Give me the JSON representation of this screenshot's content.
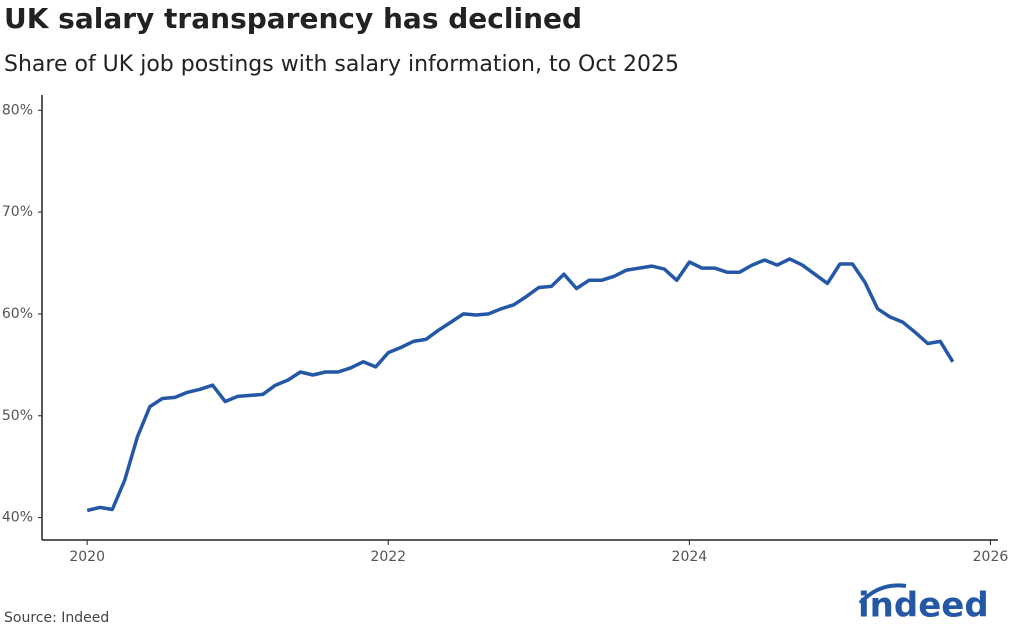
{
  "chart_data": {
    "type": "line",
    "title": "UK salary transparency has declined",
    "subtitle": "Share of UK job postings with salary information, to Oct 2025",
    "source": "Source: Indeed",
    "logo": "indeed",
    "x": [
      "2020-01",
      "2020-02",
      "2020-03",
      "2020-04",
      "2020-05",
      "2020-06",
      "2020-07",
      "2020-08",
      "2020-09",
      "2020-10",
      "2020-11",
      "2020-12",
      "2021-01",
      "2021-02",
      "2021-03",
      "2021-04",
      "2021-05",
      "2021-06",
      "2021-07",
      "2021-08",
      "2021-09",
      "2021-10",
      "2021-11",
      "2021-12",
      "2022-01",
      "2022-02",
      "2022-03",
      "2022-04",
      "2022-05",
      "2022-06",
      "2022-07",
      "2022-08",
      "2022-09",
      "2022-10",
      "2022-11",
      "2022-12",
      "2023-01",
      "2023-02",
      "2023-03",
      "2023-04",
      "2023-05",
      "2023-06",
      "2023-07",
      "2023-08",
      "2023-09",
      "2023-10",
      "2023-11",
      "2023-12",
      "2024-01",
      "2024-02",
      "2024-03",
      "2024-04",
      "2024-05",
      "2024-06",
      "2024-07",
      "2024-08",
      "2024-09",
      "2024-10",
      "2024-11",
      "2024-12",
      "2025-01",
      "2025-02",
      "2025-03",
      "2025-04",
      "2025-05",
      "2025-06",
      "2025-07",
      "2025-08",
      "2025-09",
      "2025-10"
    ],
    "series": [
      {
        "color": "#2557a7",
        "values": [
          40.7,
          41.0,
          40.8,
          43.7,
          47.9,
          50.9,
          51.7,
          51.8,
          52.3,
          52.6,
          53.0,
          51.4,
          51.9,
          52.0,
          52.1,
          53.0,
          53.5,
          54.3,
          54.0,
          54.3,
          54.3,
          54.7,
          55.3,
          54.8,
          56.2,
          56.7,
          57.3,
          57.5,
          58.4,
          59.2,
          60.0,
          59.9,
          60.0,
          60.5,
          60.9,
          61.7,
          62.6,
          62.7,
          63.9,
          62.5,
          63.3,
          63.3,
          63.7,
          64.3,
          64.5,
          64.7,
          64.4,
          63.3,
          65.1,
          64.5,
          64.5,
          64.1,
          64.1,
          64.8,
          65.3,
          64.8,
          65.4,
          64.8,
          63.9,
          63.0,
          64.9,
          64.9,
          63.1,
          60.5,
          59.7,
          59.2,
          58.2,
          57.1,
          57.3,
          55.3
        ]
      }
    ],
    "xlim": [
      2019.7,
      2026.05
    ],
    "xticks": [
      2020,
      2022,
      2024,
      2026
    ],
    "ylim": [
      37.8,
      81.5
    ],
    "yticks": [
      {
        "value": 40,
        "label": "40%"
      },
      {
        "value": 50,
        "label": "50%"
      },
      {
        "value": 60,
        "label": "60%"
      },
      {
        "value": 70,
        "label": "70%"
      },
      {
        "value": 80,
        "label": "80%"
      }
    ],
    "grid": false
  }
}
